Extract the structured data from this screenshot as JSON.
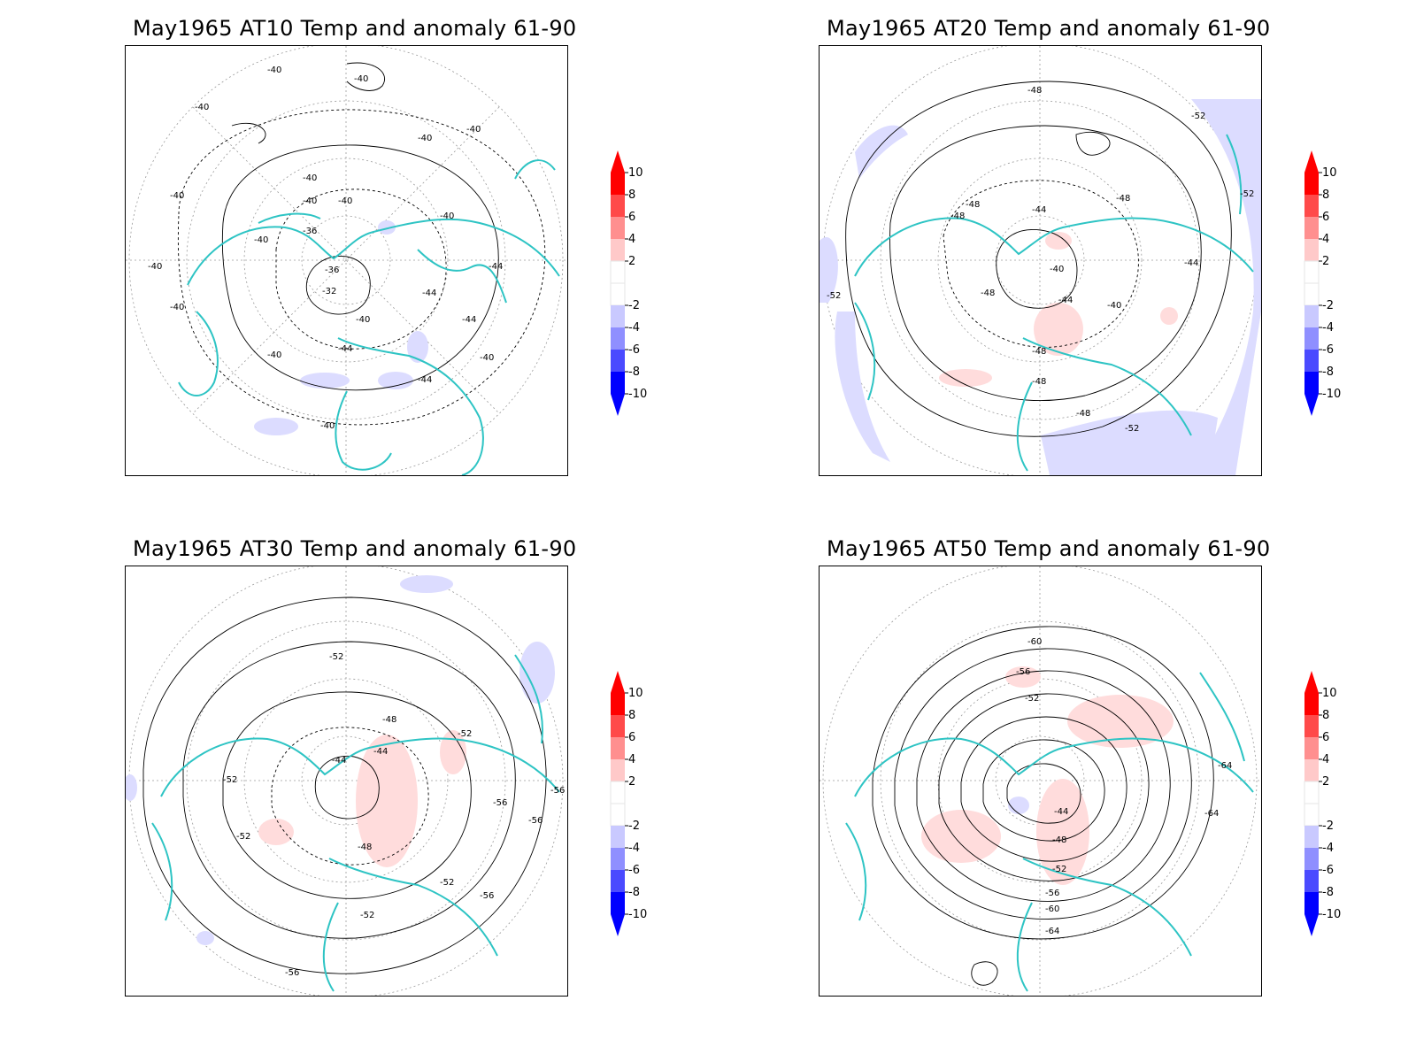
{
  "colorbar": {
    "levels": [
      "10",
      "8",
      "6",
      "4",
      "2",
      "-2",
      "-4",
      "-6",
      "-8",
      "-10"
    ],
    "fills": [
      "#ff0000",
      "#ff4a4a",
      "#ff8f8f",
      "#ffc9c9",
      "#ffffff",
      "#ffffff",
      "#c9c9ff",
      "#8f8fff",
      "#4a4aff",
      "#0000ff"
    ],
    "top_arrow": "#ff0000",
    "bottom_arrow": "#0000ff"
  },
  "colors": {
    "coast": "#2ec4c4",
    "frame": "#000000",
    "grid": "#9a9a9a"
  },
  "panels": [
    {
      "title": "May1965 AT10 Temp and anomaly 61-90",
      "labels": [
        "-40",
        "-40",
        "-40",
        "-40",
        "-40",
        "-40",
        "-40",
        "-40",
        "-40",
        "-40",
        "-40",
        "-40",
        "-40",
        "-40",
        "-36",
        "-36",
        "-32",
        "-44",
        "-44",
        "-44",
        "-44",
        "-44",
        "-40",
        "-40",
        "-40"
      ]
    },
    {
      "title": "May1965 AT20 Temp and anomaly 61-90",
      "labels": [
        "-48",
        "-48",
        "-48",
        "-48",
        "-48",
        "-48",
        "-48",
        "-44",
        "-44",
        "-44",
        "-40",
        "-40",
        "-52",
        "-52",
        "-52",
        "-52",
        "-48"
      ]
    },
    {
      "title": "May1965 AT30 Temp and anomaly 61-90",
      "labels": [
        "-52",
        "-52",
        "-52",
        "-52",
        "-52",
        "-52",
        "-48",
        "-48",
        "-44",
        "-44",
        "-56",
        "-56",
        "-56",
        "-56",
        "-56"
      ]
    },
    {
      "title": "May1965 AT50 Temp and anomaly 61-90",
      "labels": [
        "-60",
        "-56",
        "-52",
        "-44",
        "-48",
        "-52",
        "-56",
        "-60",
        "-64",
        "-64",
        "-64"
      ]
    }
  ]
}
